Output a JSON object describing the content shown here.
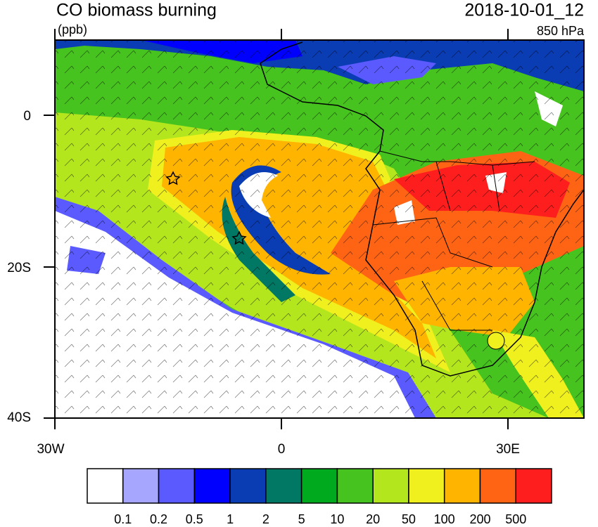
{
  "header": {
    "title": "CO biomass burning",
    "units": "(ppb)",
    "time": "2018-10-01_12",
    "level": "850 hPa"
  },
  "map": {
    "lat_labels": [
      "0",
      "20S",
      "40S"
    ],
    "lon_labels": [
      "30W",
      "0",
      "30E"
    ]
  },
  "colorbar": {
    "colors": [
      "#ffffff",
      "#a6a6ff",
      "#5a5aff",
      "#0000ff",
      "#0a3cb4",
      "#007864",
      "#00aa1e",
      "#46c31e",
      "#b4e61e",
      "#f0f01e",
      "#ffb400",
      "#ff6414",
      "#ff1e1e"
    ],
    "labels": [
      "0.1",
      "0.2",
      "0.5",
      "1",
      "2",
      "5",
      "10",
      "20",
      "50",
      "100",
      "200",
      "500"
    ]
  }
}
